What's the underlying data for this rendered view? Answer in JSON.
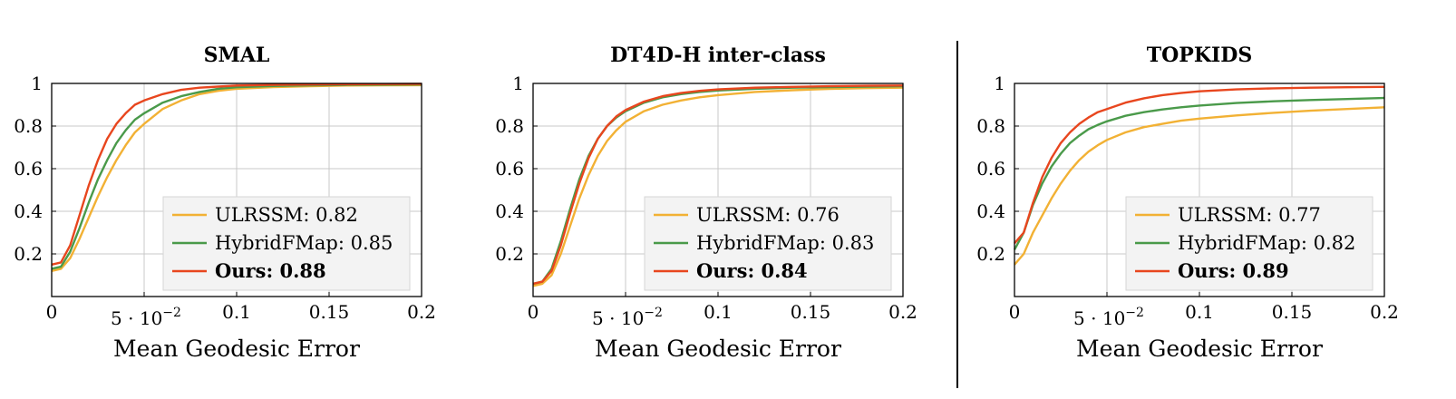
{
  "chart_data": [
    {
      "type": "line",
      "title": "SMAL",
      "xlabel": "Mean Geodesic Error",
      "ylabel": "",
      "xlim": [
        0,
        0.2
      ],
      "ylim": [
        0,
        1
      ],
      "x_ticks": [
        "0",
        "5 · 10−2",
        "0.1",
        "0.15",
        "0.2"
      ],
      "y_ticks": [
        "0.2",
        "0.4",
        "0.6",
        "0.8",
        "1"
      ],
      "grid": true,
      "legend_position": "bottom-right",
      "x": [
        0,
        0.005,
        0.01,
        0.015,
        0.02,
        0.025,
        0.03,
        0.035,
        0.04,
        0.045,
        0.05,
        0.06,
        0.07,
        0.08,
        0.09,
        0.1,
        0.12,
        0.14,
        0.16,
        0.18,
        0.2
      ],
      "series": [
        {
          "name": "ULRSSM: 0.82",
          "color": "#f2b134",
          "bold": false,
          "values": [
            0.12,
            0.13,
            0.18,
            0.27,
            0.37,
            0.47,
            0.56,
            0.64,
            0.71,
            0.77,
            0.81,
            0.88,
            0.92,
            0.95,
            0.965,
            0.975,
            0.983,
            0.987,
            0.99,
            0.991,
            0.992
          ]
        },
        {
          "name": "HybridFMap: 0.85",
          "color": "#4a9a4a",
          "bold": false,
          "values": [
            0.13,
            0.14,
            0.21,
            0.32,
            0.44,
            0.55,
            0.64,
            0.72,
            0.78,
            0.83,
            0.86,
            0.91,
            0.94,
            0.96,
            0.975,
            0.982,
            0.988,
            0.991,
            0.993,
            0.994,
            0.995
          ]
        },
        {
          "name": "Ours: 0.88",
          "color": "#e8461e",
          "bold": true,
          "values": [
            0.15,
            0.16,
            0.24,
            0.38,
            0.52,
            0.64,
            0.74,
            0.81,
            0.86,
            0.9,
            0.92,
            0.95,
            0.97,
            0.98,
            0.985,
            0.99,
            0.993,
            0.995,
            0.996,
            0.997,
            0.998
          ]
        }
      ]
    },
    {
      "type": "line",
      "title": "DT4D-H inter-class",
      "xlabel": "Mean Geodesic Error",
      "ylabel": "",
      "xlim": [
        0,
        0.2
      ],
      "ylim": [
        0,
        1
      ],
      "x_ticks": [
        "0",
        "5 · 10−2",
        "0.1",
        "0.15",
        "0.2"
      ],
      "y_ticks": [
        "0.2",
        "0.4",
        "0.6",
        "0.8",
        "1"
      ],
      "grid": true,
      "legend_position": "bottom-right",
      "x": [
        0,
        0.005,
        0.01,
        0.015,
        0.02,
        0.025,
        0.03,
        0.035,
        0.04,
        0.045,
        0.05,
        0.06,
        0.07,
        0.08,
        0.09,
        0.1,
        0.12,
        0.14,
        0.16,
        0.18,
        0.2
      ],
      "series": [
        {
          "name": "ULRSSM: 0.76",
          "color": "#f2b134",
          "bold": false,
          "values": [
            0.05,
            0.06,
            0.1,
            0.2,
            0.33,
            0.46,
            0.57,
            0.66,
            0.73,
            0.78,
            0.82,
            0.87,
            0.9,
            0.92,
            0.935,
            0.945,
            0.96,
            0.968,
            0.974,
            0.978,
            0.98
          ]
        },
        {
          "name": "HybridFMap: 0.83",
          "color": "#4a9a4a",
          "bold": false,
          "values": [
            0.06,
            0.07,
            0.13,
            0.26,
            0.41,
            0.55,
            0.66,
            0.74,
            0.8,
            0.84,
            0.87,
            0.91,
            0.935,
            0.95,
            0.96,
            0.967,
            0.975,
            0.98,
            0.983,
            0.985,
            0.987
          ]
        },
        {
          "name": "Ours: 0.84",
          "color": "#e8461e",
          "bold": true,
          "values": [
            0.06,
            0.07,
            0.12,
            0.24,
            0.39,
            0.53,
            0.65,
            0.74,
            0.8,
            0.845,
            0.875,
            0.915,
            0.94,
            0.955,
            0.965,
            0.972,
            0.98,
            0.984,
            0.987,
            0.989,
            0.99
          ]
        }
      ]
    },
    {
      "type": "line",
      "title": "TOPKIDS",
      "xlabel": "Mean Geodesic Error",
      "ylabel": "",
      "xlim": [
        0,
        0.2
      ],
      "ylim": [
        0,
        1
      ],
      "x_ticks": [
        "0",
        "5 · 10−2",
        "0.1",
        "0.15",
        "0.2"
      ],
      "y_ticks": [
        "0.2",
        "0.4",
        "0.6",
        "0.8",
        "1"
      ],
      "grid": true,
      "legend_position": "bottom-right",
      "x": [
        0,
        0.005,
        0.01,
        0.015,
        0.02,
        0.025,
        0.03,
        0.035,
        0.04,
        0.045,
        0.05,
        0.06,
        0.07,
        0.08,
        0.09,
        0.1,
        0.12,
        0.14,
        0.16,
        0.18,
        0.2
      ],
      "series": [
        {
          "name": "ULRSSM: 0.77",
          "color": "#f2b134",
          "bold": false,
          "values": [
            0.15,
            0.2,
            0.3,
            0.38,
            0.46,
            0.53,
            0.59,
            0.64,
            0.68,
            0.71,
            0.735,
            0.77,
            0.795,
            0.81,
            0.825,
            0.835,
            0.85,
            0.862,
            0.872,
            0.88,
            0.888
          ]
        },
        {
          "name": "HybridFMap: 0.82",
          "color": "#4a9a4a",
          "bold": false,
          "values": [
            0.22,
            0.3,
            0.43,
            0.53,
            0.61,
            0.67,
            0.72,
            0.755,
            0.785,
            0.805,
            0.822,
            0.848,
            0.865,
            0.878,
            0.888,
            0.896,
            0.908,
            0.916,
            0.922,
            0.927,
            0.932
          ]
        },
        {
          "name": "Ours: 0.89",
          "color": "#e8461e",
          "bold": true,
          "values": [
            0.25,
            0.3,
            0.44,
            0.56,
            0.65,
            0.72,
            0.77,
            0.81,
            0.84,
            0.865,
            0.88,
            0.91,
            0.93,
            0.945,
            0.955,
            0.963,
            0.972,
            0.977,
            0.98,
            0.982,
            0.984
          ]
        }
      ]
    }
  ]
}
